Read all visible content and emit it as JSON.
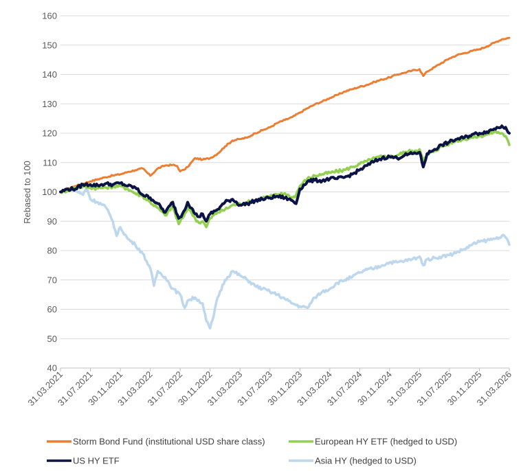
{
  "chart_data": {
    "type": "line",
    "title": "",
    "xlabel": "",
    "ylabel": "Rebased to 100",
    "ylim": [
      40,
      160
    ],
    "yticks": [
      "40",
      "50",
      "60",
      "70",
      "80",
      "90",
      "100",
      "110",
      "120",
      "130",
      "140",
      "150",
      "160"
    ],
    "xlim": [
      0,
      60
    ],
    "xticks": [
      {
        "label": "31.03.2021",
        "month": 0
      },
      {
        "label": "31.07.2021",
        "month": 4
      },
      {
        "label": "30.11.2021",
        "month": 8
      },
      {
        "label": "31.03.2022",
        "month": 12
      },
      {
        "label": "31.07.2022",
        "month": 16
      },
      {
        "label": "30.11.2022",
        "month": 20
      },
      {
        "label": "31.03.2023",
        "month": 24
      },
      {
        "label": "31.07.2023",
        "month": 28
      },
      {
        "label": "30.11.2023",
        "month": 32
      },
      {
        "label": "31.03.2024",
        "month": 36
      },
      {
        "label": "31.07.2024",
        "month": 40
      },
      {
        "label": "30.11.2024",
        "month": 44
      },
      {
        "label": "31.03.2025",
        "month": 48
      },
      {
        "label": "31.07.2025",
        "month": 52
      },
      {
        "label": "30.11.2025",
        "month": 56
      },
      {
        "label": "31.03.2026",
        "month": 60
      }
    ],
    "gridlines": "horizontal",
    "legend_position": "bottom",
    "series": [
      {
        "name": "Storm Bond Fund (institutional USD share class)",
        "color": "#ED7D31",
        "points": [
          [
            0,
            100
          ],
          [
            1,
            101.2
          ],
          [
            2,
            102
          ],
          [
            3,
            102.8
          ],
          [
            4,
            103.6
          ],
          [
            5,
            104.3
          ],
          [
            6,
            105
          ],
          [
            7,
            105.6
          ],
          [
            8,
            106
          ],
          [
            9,
            106.8
          ],
          [
            10,
            107.4
          ],
          [
            11,
            108
          ],
          [
            12,
            105.5
          ],
          [
            13,
            108
          ],
          [
            14,
            109
          ],
          [
            15,
            109.2
          ],
          [
            15.6,
            108.8
          ],
          [
            16,
            107
          ],
          [
            16.5,
            107.5
          ],
          [
            17,
            108.5
          ],
          [
            18,
            111.5
          ],
          [
            19,
            111
          ],
          [
            20,
            111.5
          ],
          [
            21,
            113
          ],
          [
            22,
            115.5
          ],
          [
            23,
            117.5
          ],
          [
            24,
            118
          ],
          [
            25,
            118.5
          ],
          [
            26,
            120
          ],
          [
            27,
            121
          ],
          [
            28,
            122
          ],
          [
            29,
            123.5
          ],
          [
            30,
            124.5
          ],
          [
            31,
            125.5
          ],
          [
            32,
            127
          ],
          [
            33,
            128.5
          ],
          [
            34,
            129.8
          ],
          [
            35,
            130.8
          ],
          [
            36,
            132
          ],
          [
            37,
            133
          ],
          [
            38,
            134.2
          ],
          [
            39,
            135
          ],
          [
            40,
            135.8
          ],
          [
            41,
            136.5
          ],
          [
            42,
            137.5
          ],
          [
            43,
            138.3
          ],
          [
            44,
            139
          ],
          [
            45,
            140
          ],
          [
            46,
            140.6
          ],
          [
            47,
            141.3
          ],
          [
            48,
            141.8
          ],
          [
            48.5,
            139.5
          ],
          [
            49,
            141
          ],
          [
            50,
            142.5
          ],
          [
            51,
            144
          ],
          [
            52,
            145.5
          ],
          [
            53,
            146.6
          ],
          [
            54,
            147.3
          ],
          [
            55,
            148
          ],
          [
            56,
            148.6
          ],
          [
            57,
            149.6
          ],
          [
            58,
            150.8
          ],
          [
            59,
            152
          ],
          [
            60,
            152.5
          ]
        ]
      },
      {
        "name": "European HY ETF (hedged to USD)",
        "color": "#92D050",
        "points": [
          [
            0,
            100
          ],
          [
            1,
            100.5
          ],
          [
            2,
            101.5
          ],
          [
            3,
            101.8
          ],
          [
            4,
            101.5
          ],
          [
            5,
            101.2
          ],
          [
            6,
            101.5
          ],
          [
            7,
            101.8
          ],
          [
            8,
            102
          ],
          [
            9,
            101
          ],
          [
            10,
            99.5
          ],
          [
            11,
            98.5
          ],
          [
            12,
            96.5
          ],
          [
            13,
            94.5
          ],
          [
            14,
            92
          ],
          [
            15,
            95
          ],
          [
            15.8,
            89
          ],
          [
            16.3,
            91
          ],
          [
            17,
            94.5
          ],
          [
            17.5,
            93
          ],
          [
            18,
            91
          ],
          [
            18.5,
            89.5
          ],
          [
            19,
            90
          ],
          [
            19.5,
            88
          ],
          [
            20,
            91
          ],
          [
            21,
            93
          ],
          [
            22,
            94
          ],
          [
            23,
            95.5
          ],
          [
            24,
            96
          ],
          [
            25,
            96.5
          ],
          [
            26,
            97
          ],
          [
            27,
            98
          ],
          [
            28,
            98.5
          ],
          [
            29,
            99
          ],
          [
            30,
            99.5
          ],
          [
            31,
            98
          ],
          [
            31.5,
            99
          ],
          [
            32,
            102
          ],
          [
            33,
            104.5
          ],
          [
            34,
            105.5
          ],
          [
            35,
            106
          ],
          [
            36,
            106.5
          ],
          [
            37,
            107
          ],
          [
            38,
            107.5
          ],
          [
            39,
            108.5
          ],
          [
            40,
            109.5
          ],
          [
            41,
            110.5
          ],
          [
            42,
            111.5
          ],
          [
            43,
            112
          ],
          [
            44,
            112
          ],
          [
            45,
            112.5
          ],
          [
            46,
            113.5
          ],
          [
            47,
            114
          ],
          [
            48,
            114.5
          ],
          [
            48.5,
            110.5
          ],
          [
            49,
            112.5
          ],
          [
            50,
            114
          ],
          [
            51,
            115.5
          ],
          [
            52,
            116.5
          ],
          [
            53,
            117.5
          ],
          [
            54,
            118
          ],
          [
            55,
            118.5
          ],
          [
            56,
            119
          ],
          [
            57,
            119.5
          ],
          [
            58,
            120.5
          ],
          [
            59,
            120
          ],
          [
            59.5,
            119
          ],
          [
            60,
            116
          ]
        ]
      },
      {
        "name": "US HY ETF",
        "color": "#0C1446",
        "points": [
          [
            0,
            100
          ],
          [
            1,
            101
          ],
          [
            2,
            101
          ],
          [
            3,
            102.5
          ],
          [
            4,
            102.5
          ],
          [
            5,
            102.2
          ],
          [
            6,
            102.8
          ],
          [
            7,
            102.5
          ],
          [
            8,
            103
          ],
          [
            9,
            102
          ],
          [
            10,
            101.5
          ],
          [
            11,
            99
          ],
          [
            12,
            98
          ],
          [
            13,
            96
          ],
          [
            14,
            93
          ],
          [
            15,
            96.5
          ],
          [
            15.8,
            91
          ],
          [
            16.3,
            92.5
          ],
          [
            17,
            96.5
          ],
          [
            17.5,
            94.5
          ],
          [
            18,
            92.5
          ],
          [
            18.5,
            91.5
          ],
          [
            19,
            92.5
          ],
          [
            19.5,
            90
          ],
          [
            20,
            92.5
          ],
          [
            21,
            94
          ],
          [
            22,
            96.5
          ],
          [
            23,
            97.5
          ],
          [
            24,
            95.5
          ],
          [
            25,
            96
          ],
          [
            26,
            97
          ],
          [
            27,
            97.5
          ],
          [
            28,
            98
          ],
          [
            29,
            98.5
          ],
          [
            30,
            98
          ],
          [
            31,
            97
          ],
          [
            31.5,
            96
          ],
          [
            32,
            101
          ],
          [
            33,
            103.5
          ],
          [
            34,
            104
          ],
          [
            35,
            103.8
          ],
          [
            36,
            104.5
          ],
          [
            37,
            104.5
          ],
          [
            38,
            105
          ],
          [
            39,
            106
          ],
          [
            40,
            107.5
          ],
          [
            41,
            109
          ],
          [
            42,
            110.5
          ],
          [
            43,
            111.5
          ],
          [
            44,
            112
          ],
          [
            45,
            111.5
          ],
          [
            46,
            112.5
          ],
          [
            47,
            113
          ],
          [
            48,
            113.5
          ],
          [
            48.5,
            108.5
          ],
          [
            49,
            113
          ],
          [
            50,
            114.5
          ],
          [
            51,
            116
          ],
          [
            52,
            117
          ],
          [
            53,
            118
          ],
          [
            54,
            118.5
          ],
          [
            55,
            119.5
          ],
          [
            56,
            120
          ],
          [
            57,
            120.5
          ],
          [
            58,
            121.5
          ],
          [
            59,
            122.5
          ],
          [
            59.5,
            122
          ],
          [
            60,
            120
          ]
        ]
      },
      {
        "name": "Asia HY (hedged to USD)",
        "color": "#BDD7EE",
        "points": [
          [
            0,
            100
          ],
          [
            1,
            101
          ],
          [
            2,
            100.5
          ],
          [
            3,
            99
          ],
          [
            3.5,
            101.5
          ],
          [
            4,
            97.5
          ],
          [
            5,
            96.5
          ],
          [
            6,
            95
          ],
          [
            7,
            90
          ],
          [
            7.5,
            85
          ],
          [
            8,
            88
          ],
          [
            9,
            84
          ],
          [
            10,
            82
          ],
          [
            11,
            79
          ],
          [
            12,
            74
          ],
          [
            12.5,
            68
          ],
          [
            13,
            73
          ],
          [
            14,
            71
          ],
          [
            15,
            67
          ],
          [
            16,
            65
          ],
          [
            16.6,
            60.5
          ],
          [
            17,
            63
          ],
          [
            18,
            64
          ],
          [
            19,
            62
          ],
          [
            19.5,
            56
          ],
          [
            20,
            53.5
          ],
          [
            20.5,
            58
          ],
          [
            21,
            64
          ],
          [
            22,
            70
          ],
          [
            23,
            73
          ],
          [
            24,
            71.5
          ],
          [
            25,
            70
          ],
          [
            26,
            68
          ],
          [
            27,
            67
          ],
          [
            28,
            66
          ],
          [
            29,
            65
          ],
          [
            30,
            63.5
          ],
          [
            31,
            62
          ],
          [
            32,
            61
          ],
          [
            33,
            60.5
          ],
          [
            34,
            64
          ],
          [
            35,
            66
          ],
          [
            36,
            67
          ],
          [
            37,
            69
          ],
          [
            38,
            70
          ],
          [
            39,
            71
          ],
          [
            40,
            72.5
          ],
          [
            41,
            73.5
          ],
          [
            42,
            74
          ],
          [
            43,
            75
          ],
          [
            44,
            76
          ],
          [
            45,
            76
          ],
          [
            46,
            76.5
          ],
          [
            47,
            77
          ],
          [
            48,
            78
          ],
          [
            48.5,
            75
          ],
          [
            49,
            77
          ],
          [
            50,
            77.5
          ],
          [
            51,
            78
          ],
          [
            52,
            78.5
          ],
          [
            53,
            79.5
          ],
          [
            54,
            80.5
          ],
          [
            55,
            82
          ],
          [
            56,
            83
          ],
          [
            57,
            83.5
          ],
          [
            58,
            84
          ],
          [
            59,
            85
          ],
          [
            59.5,
            84.5
          ],
          [
            60,
            82
          ]
        ]
      }
    ]
  }
}
